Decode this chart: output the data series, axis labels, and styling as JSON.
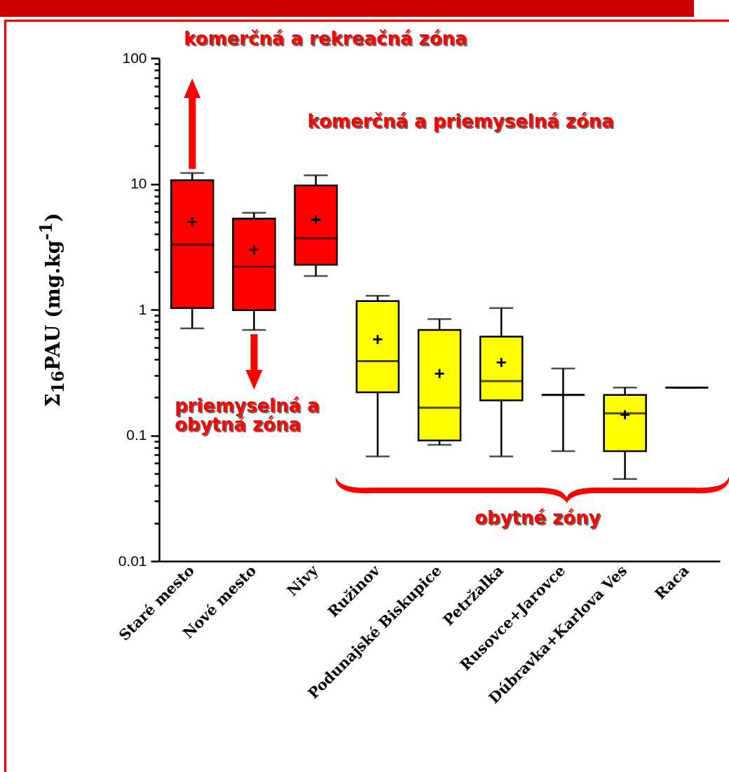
{
  "chart_data": {
    "type": "box",
    "ylabel": "Σ$_{16}$PAU (mg.kg$^{-1}$)",
    "log": true,
    "categories": [
      "Staré mesto",
      "Nové mesto",
      "Nivy",
      "Ružinov",
      "Podunajské Biskupice",
      "Petržalka",
      "Rusovce+Jarovce",
      "Dúbravka+Karlova Ves",
      "Raca"
    ],
    "colors": [
      "#ff0000",
      "#ff0000",
      "#ff0000",
      "#ffff00",
      "#ffff00",
      "#ffff00",
      "#000000",
      "#ffff00",
      "#000000"
    ],
    "boxes": [
      {
        "low": 0.71,
        "q1": 1.03,
        "median": 3.3,
        "q3": 10.7,
        "high": 12.2,
        "mean": 5.0
      },
      {
        "low": 0.69,
        "q1": 0.99,
        "median": 2.2,
        "q3": 5.3,
        "high": 5.9,
        "mean": 3.0
      },
      {
        "low": 1.85,
        "q1": 2.27,
        "median": 3.7,
        "q3": 9.7,
        "high": 11.7,
        "mean": 5.2
      },
      {
        "low": 0.068,
        "q1": 0.22,
        "median": 0.39,
        "q3": 1.17,
        "high": 1.29,
        "mean": 0.58
      },
      {
        "low": 0.084,
        "q1": 0.091,
        "median": 0.166,
        "q3": 0.69,
        "high": 0.84,
        "mean": 0.31
      },
      {
        "low": 0.068,
        "q1": 0.19,
        "median": 0.27,
        "q3": 0.61,
        "high": 1.03,
        "mean": 0.38
      },
      {
        "low": 0.075,
        "q1": 0.21,
        "median": 0.21,
        "q3": 0.21,
        "high": 0.34
      },
      {
        "low": 0.045,
        "q1": 0.075,
        "median": 0.15,
        "q3": 0.21,
        "high": 0.24,
        "mean": 0.146
      },
      {
        "low": 0.24,
        "q1": 0.24,
        "median": 0.24,
        "q3": 0.24,
        "high": 0.24
      }
    ],
    "ylim": [
      0.01,
      100
    ],
    "yticks": [
      0.01,
      {
        "value": 0.02,
        "label": null
      },
      {
        "value": 0.03,
        "label": null
      },
      {
        "value": 0.04,
        "label": null
      },
      {
        "value": 0.05,
        "label": null
      },
      {
        "value": 0.06,
        "label": null
      },
      {
        "value": 0.07,
        "label": null
      },
      {
        "value": 0.08,
        "label": null
      },
      {
        "value": 0.09,
        "label": null
      },
      0.1,
      {
        "value": 0.2,
        "label": null
      },
      {
        "value": 0.3,
        "label": null
      },
      {
        "value": 0.4,
        "label": null
      },
      {
        "value": 0.5,
        "label": null
      },
      {
        "value": 0.6,
        "label": null
      },
      {
        "value": 0.7,
        "label": null
      },
      {
        "value": 0.8,
        "label": null
      },
      {
        "value": 0.9,
        "label": null
      },
      1,
      {
        "value": 2,
        "label": null
      },
      {
        "value": 3,
        "label": null
      },
      {
        "value": 4,
        "label": null
      },
      {
        "value": 5,
        "label": null
      },
      {
        "value": 6,
        "label": null
      },
      {
        "value": 7,
        "label": null
      },
      {
        "value": 8,
        "label": null
      },
      {
        "value": 9,
        "label": null
      },
      10,
      {
        "value": 20,
        "label": null
      },
      {
        "value": 30,
        "label": null
      },
      {
        "value": 40,
        "label": null
      },
      {
        "value": 50,
        "label": null
      },
      {
        "value": 60,
        "label": null
      },
      {
        "value": 70,
        "label": null
      },
      {
        "value": 80,
        "label": null
      },
      {
        "value": 90,
        "label": null
      },
      100
    ],
    "annotations": [
      "komerčná a rekreačná zóna",
      "komerčná a priemyselná zóna",
      "priemyselná a obytná zóna",
      "obytné zóny"
    ]
  }
}
